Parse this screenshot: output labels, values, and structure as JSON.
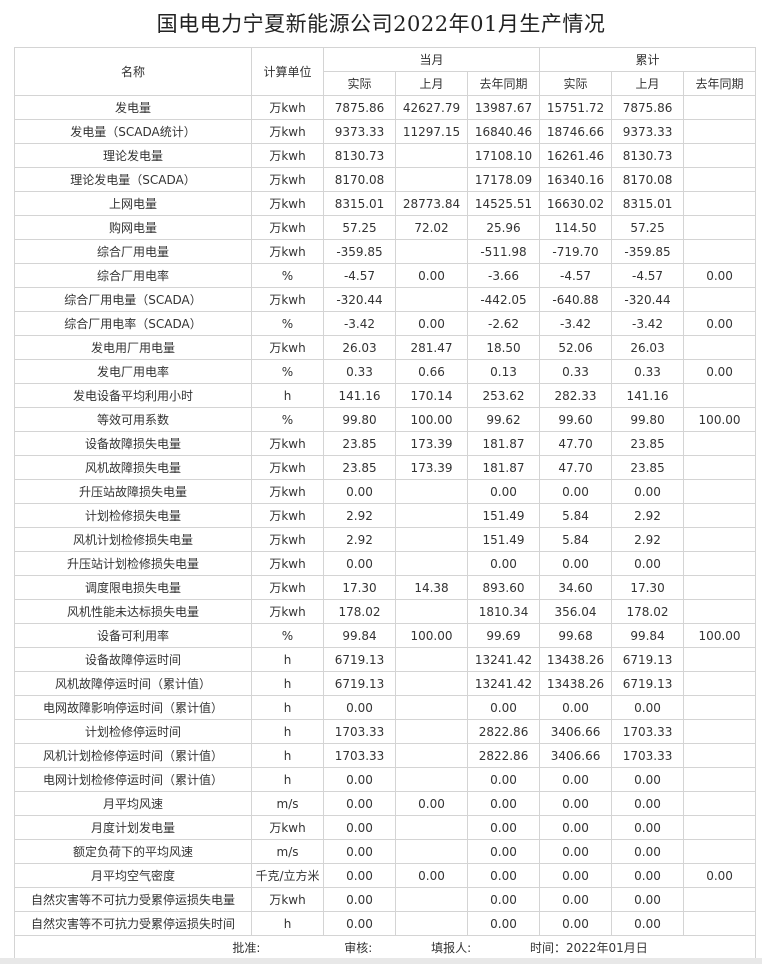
{
  "title": "国电电力宁夏新能源公司2022年01月生产情况",
  "header": {
    "name": "名称",
    "unit": "计算单位",
    "current_month": "当月",
    "cumulative": "累计",
    "sub": [
      "实际",
      "上月",
      "去年同期",
      "实际",
      "上月",
      "去年同期"
    ]
  },
  "rows": [
    [
      "发电量",
      "万kwh",
      "7875.86",
      "42627.79",
      "13987.67",
      "15751.72",
      "7875.86",
      ""
    ],
    [
      "发电量（SCADA统计）",
      "万kwh",
      "9373.33",
      "11297.15",
      "16840.46",
      "18746.66",
      "9373.33",
      ""
    ],
    [
      "理论发电量",
      "万kwh",
      "8130.73",
      "",
      "17108.10",
      "16261.46",
      "8130.73",
      ""
    ],
    [
      "理论发电量（SCADA）",
      "万kwh",
      "8170.08",
      "",
      "17178.09",
      "16340.16",
      "8170.08",
      ""
    ],
    [
      "上网电量",
      "万kwh",
      "8315.01",
      "28773.84",
      "14525.51",
      "16630.02",
      "8315.01",
      ""
    ],
    [
      "购网电量",
      "万kwh",
      "57.25",
      "72.02",
      "25.96",
      "114.50",
      "57.25",
      ""
    ],
    [
      "综合厂用电量",
      "万kwh",
      "-359.85",
      "",
      "-511.98",
      "-719.70",
      "-359.85",
      ""
    ],
    [
      "综合厂用电率",
      "%",
      "-4.57",
      "0.00",
      "-3.66",
      "-4.57",
      "-4.57",
      "0.00"
    ],
    [
      "综合厂用电量（SCADA）",
      "万kwh",
      "-320.44",
      "",
      "-442.05",
      "-640.88",
      "-320.44",
      ""
    ],
    [
      "综合厂用电率（SCADA）",
      "%",
      "-3.42",
      "0.00",
      "-2.62",
      "-3.42",
      "-3.42",
      "0.00"
    ],
    [
      "发电用厂用电量",
      "万kwh",
      "26.03",
      "281.47",
      "18.50",
      "52.06",
      "26.03",
      ""
    ],
    [
      "发电厂用电率",
      "%",
      "0.33",
      "0.66",
      "0.13",
      "0.33",
      "0.33",
      "0.00"
    ],
    [
      "发电设备平均利用小时",
      "h",
      "141.16",
      "170.14",
      "253.62",
      "282.33",
      "141.16",
      ""
    ],
    [
      "等效可用系数",
      "%",
      "99.80",
      "100.00",
      "99.62",
      "99.60",
      "99.80",
      "100.00"
    ],
    [
      "设备故障损失电量",
      "万kwh",
      "23.85",
      "173.39",
      "181.87",
      "47.70",
      "23.85",
      ""
    ],
    [
      "风机故障损失电量",
      "万kwh",
      "23.85",
      "173.39",
      "181.87",
      "47.70",
      "23.85",
      ""
    ],
    [
      "升压站故障损失电量",
      "万kwh",
      "0.00",
      "",
      "0.00",
      "0.00",
      "0.00",
      ""
    ],
    [
      "计划检修损失电量",
      "万kwh",
      "2.92",
      "",
      "151.49",
      "5.84",
      "2.92",
      ""
    ],
    [
      "风机计划检修损失电量",
      "万kwh",
      "2.92",
      "",
      "151.49",
      "5.84",
      "2.92",
      ""
    ],
    [
      "升压站计划检修损失电量",
      "万kwh",
      "0.00",
      "",
      "0.00",
      "0.00",
      "0.00",
      ""
    ],
    [
      "调度限电损失电量",
      "万kwh",
      "17.30",
      "14.38",
      "893.60",
      "34.60",
      "17.30",
      ""
    ],
    [
      "风机性能未达标损失电量",
      "万kwh",
      "178.02",
      "",
      "1810.34",
      "356.04",
      "178.02",
      ""
    ],
    [
      "设备可利用率",
      "%",
      "99.84",
      "100.00",
      "99.69",
      "99.68",
      "99.84",
      "100.00"
    ],
    [
      "设备故障停运时间",
      "h",
      "6719.13",
      "",
      "13241.42",
      "13438.26",
      "6719.13",
      ""
    ],
    [
      "风机故障停运时间（累计值）",
      "h",
      "6719.13",
      "",
      "13241.42",
      "13438.26",
      "6719.13",
      ""
    ],
    [
      "电网故障影响停运时间（累计值）",
      "h",
      "0.00",
      "",
      "0.00",
      "0.00",
      "0.00",
      ""
    ],
    [
      "计划检修停运时间",
      "h",
      "1703.33",
      "",
      "2822.86",
      "3406.66",
      "1703.33",
      ""
    ],
    [
      "风机计划检修停运时间（累计值）",
      "h",
      "1703.33",
      "",
      "2822.86",
      "3406.66",
      "1703.33",
      ""
    ],
    [
      "电网计划检修停运时间（累计值）",
      "h",
      "0.00",
      "",
      "0.00",
      "0.00",
      "0.00",
      ""
    ],
    [
      "月平均风速",
      "m/s",
      "0.00",
      "0.00",
      "0.00",
      "0.00",
      "0.00",
      ""
    ],
    [
      "月度计划发电量",
      "万kwh",
      "0.00",
      "",
      "0.00",
      "0.00",
      "0.00",
      ""
    ],
    [
      "额定负荷下的平均风速",
      "m/s",
      "0.00",
      "",
      "0.00",
      "0.00",
      "0.00",
      ""
    ],
    [
      "月平均空气密度",
      "千克/立方米",
      "0.00",
      "0.00",
      "0.00",
      "0.00",
      "0.00",
      "0.00"
    ],
    [
      "自然灾害等不可抗力受累停运损失电量",
      "万kwh",
      "0.00",
      "",
      "0.00",
      "0.00",
      "0.00",
      ""
    ],
    [
      "自然灾害等不可抗力受累停运损失时间",
      "h",
      "0.00",
      "",
      "0.00",
      "0.00",
      "0.00",
      ""
    ]
  ],
  "footer": {
    "approve": "批准:",
    "review": "审核:",
    "reporter": "填报人:",
    "time": "时间：2022年01月日"
  }
}
